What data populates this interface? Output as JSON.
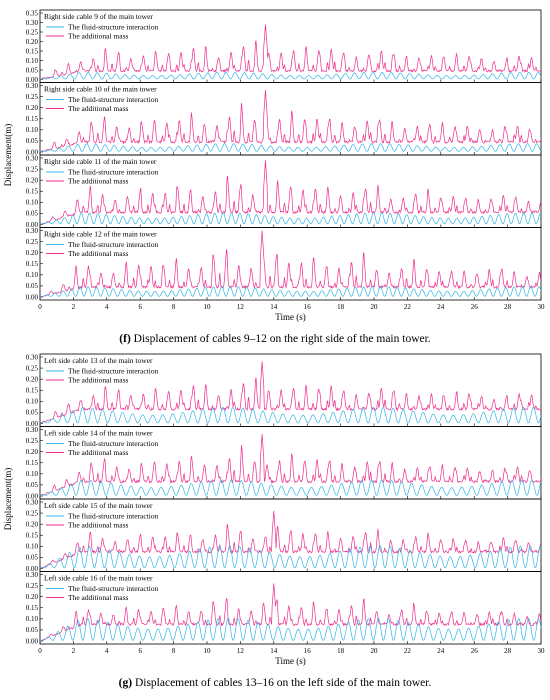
{
  "figures": [
    {
      "caption_letter": "(f)",
      "caption_text": " Displacement of cables 9–12 on the right side of the main tower.",
      "xlabel": "Time (s)",
      "ylabel": "Displacement(m)"
    },
    {
      "caption_letter": "(g)",
      "caption_text": " Displacement of cables 13–16 on the left side of the main tower.",
      "xlabel": "Time (s)",
      "ylabel": "Displacement(m)"
    }
  ],
  "colors": {
    "fsi": "#33b5e8",
    "mass": "#ee2d8c"
  },
  "chart_data": [
    {
      "type": "line",
      "x_ticks": [
        0,
        2,
        4,
        6,
        8,
        10,
        12,
        14,
        16,
        18,
        20,
        22,
        24,
        26,
        28,
        30
      ],
      "xlim": [
        0,
        30
      ],
      "panels": [
        {
          "title": "Right side cable 9 of the main tower",
          "ylim": [
            0,
            0.35
          ],
          "yticks": [
            "0.00",
            "0.05",
            "0.10",
            "0.15",
            "0.20",
            "0.25",
            "0.30",
            "0.35"
          ],
          "fsi_amp": 0.035,
          "fsi_period": 0.55,
          "mass_peak": 0.29,
          "mass_peak_t": 13.5,
          "mass_base": 0.04
        },
        {
          "title": "Right side cable 10 of the main tower",
          "ylim": [
            0,
            0.3
          ],
          "yticks": [
            "0.00",
            "0.05",
            "0.10",
            "0.15",
            "0.20",
            "0.25",
            "0.30"
          ],
          "fsi_amp": 0.035,
          "fsi_period": 0.55,
          "mass_peak": 0.28,
          "mass_peak_t": 13.5,
          "mass_base": 0.04
        },
        {
          "title": "Right side cable 11 of the main tower",
          "ylim": [
            0,
            0.3
          ],
          "yticks": [
            "0.00",
            "0.05",
            "0.10",
            "0.15",
            "0.20",
            "0.25",
            "0.30"
          ],
          "fsi_amp": 0.05,
          "fsi_period": 0.5,
          "mass_peak": 0.29,
          "mass_peak_t": 13.5,
          "mass_base": 0.05
        },
        {
          "title": "Right side cable 12 of the main tower",
          "ylim": [
            0,
            0.3
          ],
          "yticks": [
            "0.00",
            "0.05",
            "0.10",
            "0.15",
            "0.20",
            "0.25",
            "0.30"
          ],
          "fsi_amp": 0.045,
          "fsi_period": 0.5,
          "mass_peak": 0.3,
          "mass_peak_t": 13.3,
          "mass_base": 0.04
        }
      ],
      "legend": [
        "The fluid-structure interaction",
        "The additional mass"
      ]
    },
    {
      "type": "line",
      "x_ticks": [
        0,
        2,
        4,
        6,
        8,
        10,
        12,
        14,
        16,
        18,
        20,
        22,
        24,
        26,
        28,
        30
      ],
      "xlim": [
        0,
        30
      ],
      "panels": [
        {
          "title": "Left side cable 13 of the main tower",
          "ylim": [
            0,
            0.3
          ],
          "yticks": [
            "0.00",
            "0.05",
            "0.10",
            "0.15",
            "0.20",
            "0.25",
            "0.30"
          ],
          "fsi_amp": 0.07,
          "fsi_period": 0.6,
          "mass_peak": 0.28,
          "mass_peak_t": 13.3,
          "mass_base": 0.06
        },
        {
          "title": "Left side cable 14 of the main tower",
          "ylim": [
            0,
            0.3
          ],
          "yticks": [
            "0.00",
            "0.05",
            "0.10",
            "0.15",
            "0.20",
            "0.25",
            "0.30"
          ],
          "fsi_amp": 0.07,
          "fsi_period": 0.6,
          "mass_peak": 0.28,
          "mass_peak_t": 13.3,
          "mass_base": 0.06
        },
        {
          "title": "Left side cable 15 of the main tower",
          "ylim": [
            0,
            0.3
          ],
          "yticks": [
            "0.00",
            "0.05",
            "0.10",
            "0.15",
            "0.20",
            "0.25",
            "0.30"
          ],
          "fsi_amp": 0.1,
          "fsi_period": 0.6,
          "mass_peak": 0.26,
          "mass_peak_t": 14.0,
          "mass_base": 0.07
        },
        {
          "title": "Left side cable 16 of the main tower",
          "ylim": [
            0,
            0.3
          ],
          "yticks": [
            "0.00",
            "0.05",
            "0.10",
            "0.15",
            "0.20",
            "0.25",
            "0.30"
          ],
          "fsi_amp": 0.1,
          "fsi_period": 0.6,
          "mass_peak": 0.26,
          "mass_peak_t": 14.0,
          "mass_base": 0.07
        }
      ],
      "legend": [
        "The fluid-structure interaction",
        "The additional mass"
      ]
    }
  ]
}
